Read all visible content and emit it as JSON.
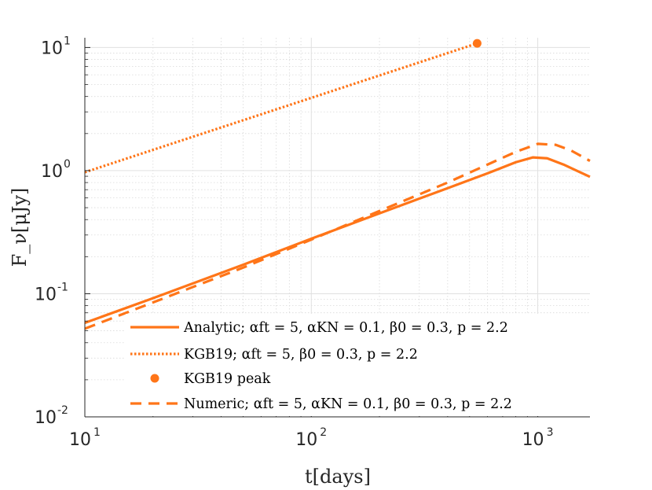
{
  "chart_data": {
    "type": "line",
    "title": "",
    "xlabel": "t[days]",
    "ylabel": "F_ν[μJy]",
    "xscale": "log",
    "yscale": "log",
    "xlim": [
      10,
      1700
    ],
    "ylim": [
      0.01,
      12
    ],
    "grid": true,
    "legend_position": "bottom-right",
    "x_ticks": [
      {
        "value": 10,
        "base": "10",
        "exp": "1"
      },
      {
        "value": 100,
        "base": "10",
        "exp": "2"
      },
      {
        "value": 1000,
        "base": "10",
        "exp": "3"
      }
    ],
    "y_ticks": [
      {
        "value": 0.01,
        "base": "10",
        "exp": "-2"
      },
      {
        "value": 0.1,
        "base": "10",
        "exp": "-1"
      },
      {
        "value": 1,
        "base": "10",
        "exp": "0"
      },
      {
        "value": 10,
        "base": "10",
        "exp": "1"
      }
    ],
    "series": [
      {
        "name": "Analytic; α_ft = 5, α_KN = 0.1, β_0 = 0.3, p = 2.2",
        "style": "solid",
        "color": "#FF7518",
        "x": [
          10,
          20,
          50,
          100,
          200,
          400,
          600,
          800,
          950,
          1100,
          1300,
          1500,
          1700
        ],
        "y": [
          0.058,
          0.092,
          0.172,
          0.28,
          0.45,
          0.72,
          0.95,
          1.17,
          1.28,
          1.26,
          1.12,
          0.99,
          0.89
        ]
      },
      {
        "name": "KGB19; α_ft = 5, β_0 = 0.3, p = 2.2",
        "style": "dotted",
        "color": "#FF7518",
        "x": [
          10,
          540
        ],
        "y": [
          0.97,
          10.8
        ]
      },
      {
        "name": "KGB19 peak",
        "style": "marker",
        "color": "#FF7518",
        "x": [
          540
        ],
        "y": [
          10.8
        ]
      },
      {
        "name": "Numeric; α_ft = 5, α_KN = 0.1, β_0 = 0.3, p = 2.2",
        "style": "dashed",
        "color": "#FF7518",
        "x": [
          10,
          20,
          50,
          100,
          200,
          400,
          600,
          800,
          1000,
          1200,
          1400,
          1700
        ],
        "y": [
          0.052,
          0.085,
          0.163,
          0.275,
          0.47,
          0.8,
          1.12,
          1.42,
          1.65,
          1.62,
          1.46,
          1.2
        ]
      }
    ],
    "legend": [
      {
        "text": "Analytic; αft = 5, αKN = 0.1, β0 = 0.3, p = 2.2",
        "style": "solid"
      },
      {
        "text": "KGB19; αft = 5, β0 = 0.3, p = 2.2",
        "style": "dotted"
      },
      {
        "text": "KGB19 peak",
        "style": "marker"
      },
      {
        "text": "Numeric; αft = 5, αKN = 0.1, β0 = 0.3, p = 2.2",
        "style": "dashed"
      }
    ]
  }
}
